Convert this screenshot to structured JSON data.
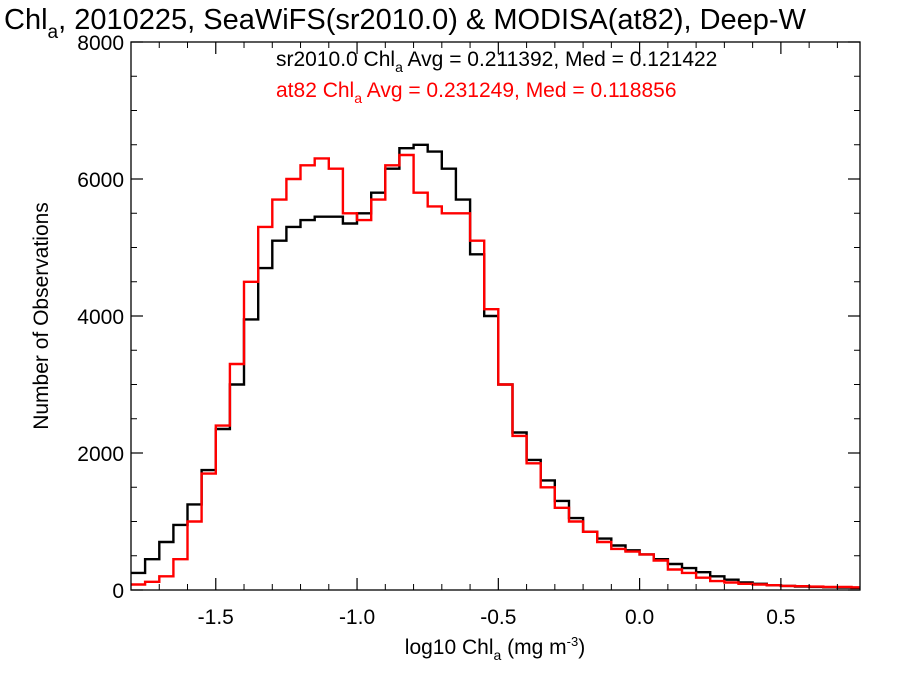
{
  "chart_data": {
    "type": "line",
    "title": {
      "main": "Chl",
      "sub": "a",
      "rest": ", 2010225, SeaWiFS(sr2010.0) & MODISA(at82), Deep-W"
    },
    "xlabel": {
      "pre": "log10 Chl",
      "sub": "a",
      "mid": " (mg m",
      "sup": "-3",
      "post": ")"
    },
    "ylabel": "Number of Observations",
    "xlim": [
      -1.8,
      0.78
    ],
    "ylim": [
      0,
      8000
    ],
    "x_ticks": [
      {
        "value": -1.5,
        "label": "-1.5"
      },
      {
        "value": -1.0,
        "label": "-1.0"
      },
      {
        "value": -0.5,
        "label": "-0.5"
      },
      {
        "value": 0.0,
        "label": "0.0"
      },
      {
        "value": 0.5,
        "label": "0.5"
      }
    ],
    "y_ticks": [
      {
        "value": 0,
        "label": "0"
      },
      {
        "value": 2000,
        "label": "2000"
      },
      {
        "value": 4000,
        "label": "4000"
      },
      {
        "value": 6000,
        "label": "6000"
      },
      {
        "value": 8000,
        "label": "8000"
      }
    ],
    "legend": [
      {
        "pre": "sr2010.0 Chl",
        "sub": "a",
        "post": " Avg = 0.211392, Med = 0.121422",
        "color": "#000000"
      },
      {
        "pre": "at82 Chl",
        "sub": "a",
        "post": " Avg = 0.231249, Med = 0.118856",
        "color": "#ff0000"
      }
    ],
    "series": [
      {
        "color": "#000000",
        "x": [
          -1.8,
          -1.75,
          -1.7,
          -1.65,
          -1.6,
          -1.55,
          -1.5,
          -1.45,
          -1.4,
          -1.35,
          -1.3,
          -1.25,
          -1.2,
          -1.15,
          -1.1,
          -1.05,
          -1.0,
          -0.95,
          -0.9,
          -0.85,
          -0.8,
          -0.75,
          -0.7,
          -0.65,
          -0.6,
          -0.55,
          -0.5,
          -0.45,
          -0.4,
          -0.35,
          -0.3,
          -0.25,
          -0.2,
          -0.15,
          -0.1,
          -0.05,
          0.0,
          0.05,
          0.1,
          0.15,
          0.2,
          0.25,
          0.3,
          0.35,
          0.4,
          0.45,
          0.5,
          0.55,
          0.6,
          0.65,
          0.7,
          0.75,
          0.78
        ],
        "values": [
          250,
          450,
          700,
          950,
          1250,
          1750,
          2350,
          3000,
          3950,
          4700,
          5100,
          5300,
          5400,
          5450,
          5450,
          5350,
          5500,
          5800,
          6150,
          6450,
          6500,
          6400,
          6150,
          5700,
          4900,
          4000,
          3000,
          2300,
          1900,
          1600,
          1300,
          1050,
          850,
          750,
          650,
          580,
          520,
          450,
          380,
          320,
          260,
          200,
          150,
          110,
          90,
          70,
          60,
          50,
          45,
          40,
          35,
          30,
          30
        ]
      },
      {
        "color": "#ff0000",
        "x": [
          -1.8,
          -1.75,
          -1.7,
          -1.65,
          -1.6,
          -1.55,
          -1.5,
          -1.45,
          -1.4,
          -1.35,
          -1.3,
          -1.25,
          -1.2,
          -1.15,
          -1.1,
          -1.05,
          -1.0,
          -0.95,
          -0.9,
          -0.85,
          -0.8,
          -0.75,
          -0.7,
          -0.65,
          -0.6,
          -0.55,
          -0.5,
          -0.45,
          -0.4,
          -0.35,
          -0.3,
          -0.25,
          -0.2,
          -0.15,
          -0.1,
          -0.05,
          0.0,
          0.05,
          0.1,
          0.15,
          0.2,
          0.25,
          0.3,
          0.35,
          0.4,
          0.45,
          0.5,
          0.55,
          0.6,
          0.65,
          0.7,
          0.75,
          0.78
        ],
        "values": [
          80,
          120,
          200,
          450,
          1000,
          1700,
          2400,
          3300,
          4500,
          5300,
          5700,
          6000,
          6200,
          6300,
          6150,
          5500,
          5400,
          5700,
          6200,
          6350,
          5800,
          5600,
          5500,
          5500,
          5100,
          4100,
          3000,
          2250,
          1850,
          1500,
          1200,
          1000,
          850,
          700,
          600,
          560,
          520,
          430,
          300,
          250,
          180,
          130,
          110,
          90,
          80,
          70,
          60,
          55,
          50,
          45,
          45,
          40,
          40
        ]
      }
    ]
  }
}
